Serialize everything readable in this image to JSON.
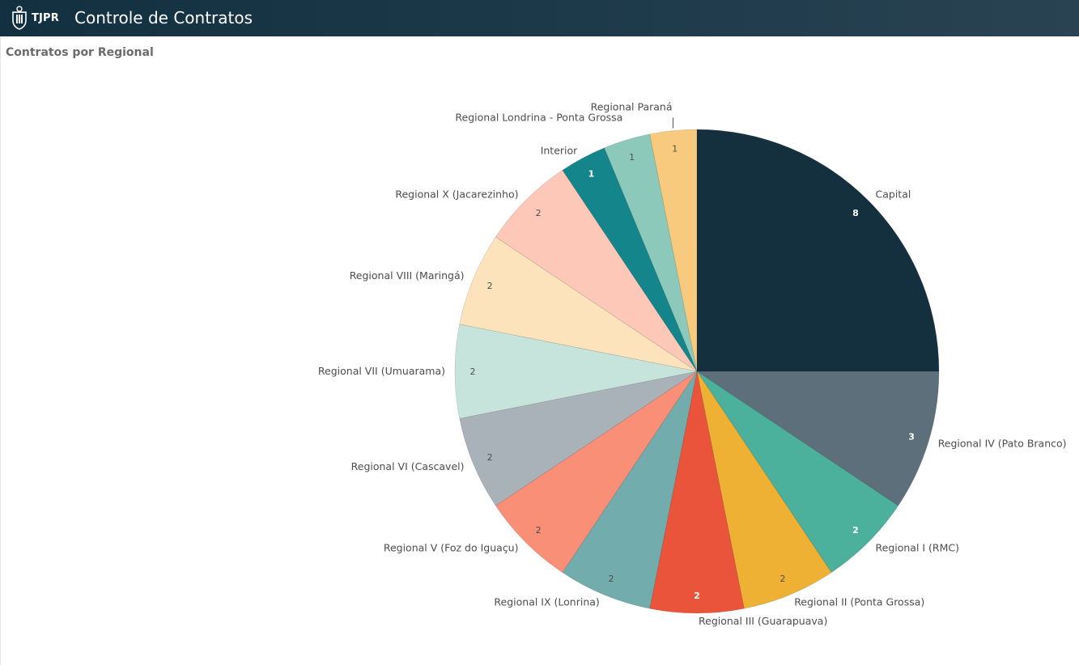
{
  "header": {
    "logo_text": "TJPR",
    "app_title": "Controle de Contratos"
  },
  "sheet": {
    "title": "Contratos por Regional"
  },
  "chart_data": {
    "type": "pie",
    "title": "Contratos por Regional",
    "slices": [
      {
        "label": "Capital",
        "value": 8,
        "color": "#14303f",
        "valueColor": "#ffffff"
      },
      {
        "label": "Regional IV (Pato Branco)",
        "value": 3,
        "color": "#5d6f7b",
        "valueColor": "#ffffff"
      },
      {
        "label": "Regional I (RMC)",
        "value": 2,
        "color": "#4bb09c",
        "valueColor": "#ffffff"
      },
      {
        "label": "Regional II (Ponta Grossa)",
        "value": 2,
        "color": "#eeb134",
        "valueColor": "#4d4d4d"
      },
      {
        "label": "Regional III (Guarapuava)",
        "value": 2,
        "color": "#e9543b",
        "valueColor": "#ffffff"
      },
      {
        "label": "Regional IX (Lonrina)",
        "value": 2,
        "color": "#72acac",
        "valueColor": "#4d4d4d"
      },
      {
        "label": "Regional V (Foz do Iguaçu)",
        "value": 2,
        "color": "#f98f77",
        "valueColor": "#4d4d4d"
      },
      {
        "label": "Regional VI (Cascavel)",
        "value": 2,
        "color": "#aab2b9",
        "valueColor": "#4d4d4d"
      },
      {
        "label": "Regional VII (Umuarama)",
        "value": 2,
        "color": "#c7e4dc",
        "valueColor": "#4d4d4d"
      },
      {
        "label": "Regional VIII (Maringá)",
        "value": 2,
        "color": "#fde3bc",
        "valueColor": "#4d4d4d"
      },
      {
        "label": "Regional X (Jacarezinho)",
        "value": 2,
        "color": "#fec8b8",
        "valueColor": "#4d4d4d"
      },
      {
        "label": "Interior",
        "value": 1,
        "color": "#14858a",
        "valueColor": "#ffffff"
      },
      {
        "label": "Regional Londrina - Ponta Grossa",
        "value": 1,
        "color": "#8dc9bb",
        "valueColor": "#4d4d4d"
      },
      {
        "label": "Regional Paraná",
        "value": 1,
        "color": "#f8ca7e",
        "valueColor": "#4d4d4d"
      }
    ]
  }
}
